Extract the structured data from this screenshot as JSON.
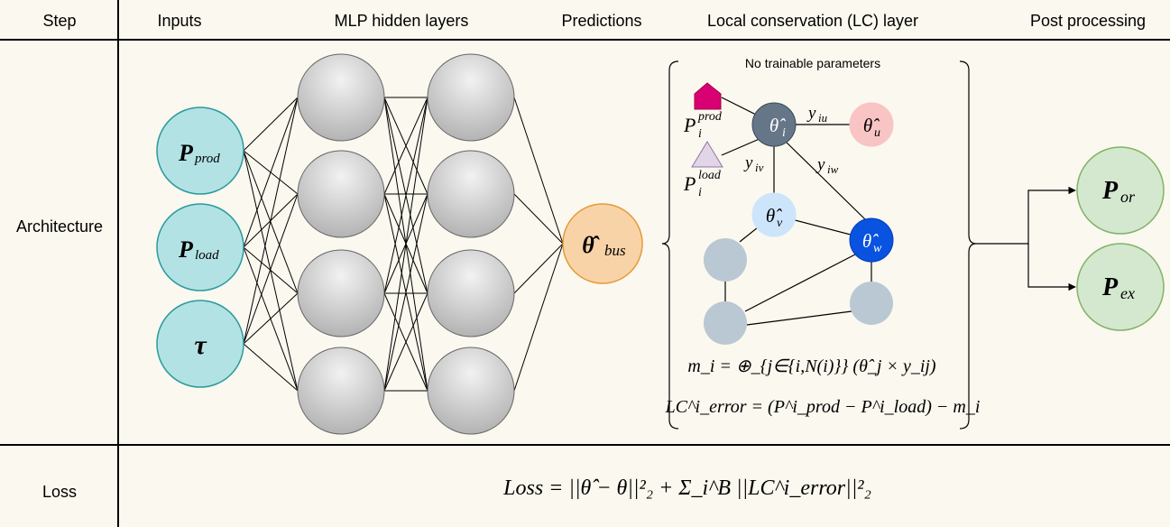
{
  "header": {
    "step": "Step",
    "inputs": "Inputs",
    "mlp": "MLP hidden layers",
    "predictions": "Predictions",
    "lc_layer": "Local conservation (LC) layer",
    "post": "Post processing"
  },
  "rows": {
    "architecture": "Architecture",
    "loss": "Loss"
  },
  "inputs": {
    "p_prod": {
      "base": "P",
      "sub": "prod"
    },
    "p_load": {
      "base": "P",
      "sub": "load"
    },
    "tau": "τ"
  },
  "prediction": {
    "base": "θ̂",
    "sub": "bus"
  },
  "lc": {
    "note": "No trainable parameters",
    "theta_i": {
      "base": "θ̂",
      "sub": "i"
    },
    "theta_u": {
      "base": "θ̂",
      "sub": "u"
    },
    "theta_v": {
      "base": "θ̂",
      "sub": "v"
    },
    "theta_w": {
      "base": "θ̂",
      "sub": "w"
    },
    "y_iu": {
      "base": "y",
      "sub": "iu"
    },
    "y_iv": {
      "base": "y",
      "sub": "iv"
    },
    "y_iw": {
      "base": "y",
      "sub": "iw"
    },
    "p_prod": {
      "base": "P",
      "sup": "prod",
      "sub": "i"
    },
    "p_load": {
      "base": "P",
      "sup": "load",
      "sub": "i"
    },
    "eq_m": "m_i = ⊕_{j∈{i,N(i)}} (θ̂_j × y_ij)",
    "eq_lc": "LC^i_error = (P^i_prod − P^i_load) − m_i"
  },
  "post": {
    "p_or": {
      "base": "P",
      "sub": "or"
    },
    "p_ex": {
      "base": "P",
      "sub": "ex"
    }
  },
  "loss_formula": "Loss = ||θ̂ − θ||²₂ + Σ_i^B ||LC^i_error||²₂",
  "colors": {
    "input": "#b3e2e4",
    "input_stroke": "#2a9a9e",
    "pred": "#f8d3a7",
    "pred_stroke": "#e59a3a",
    "theta_i": "#647687",
    "theta_u": "#f8c4c4",
    "theta_v": "#cce5fb",
    "theta_w": "#0a52e0",
    "gray_node": "#bac8d3",
    "post": "#d4e8cf",
    "post_stroke": "#82b366",
    "prod_shape": "#d80073",
    "load_shape": "#e1d5e7"
  }
}
